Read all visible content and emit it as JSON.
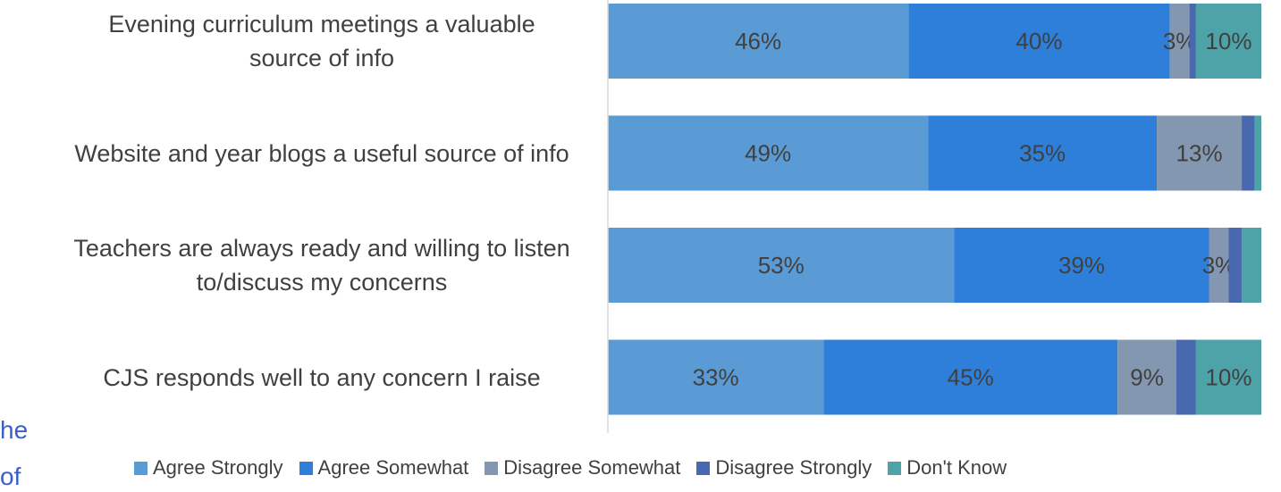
{
  "chart_data": {
    "type": "stacked-bar-horizontal",
    "categories": [
      "Evening curriculum meetings a valuable source of info",
      "Website and year blogs a useful source of info",
      "Teachers are always ready and willing to listen to/discuss my concerns",
      "CJS responds well to any concern I raise"
    ],
    "xlim": [
      0,
      100
    ],
    "series": [
      {
        "name": "Agree Strongly",
        "color": "#5b9bd5",
        "values": [
          46,
          49,
          53,
          33
        ],
        "value_labels": [
          "46%",
          "49%",
          "53%",
          "33%"
        ]
      },
      {
        "name": "Agree Somewhat",
        "color": "#2e7fd9",
        "values": [
          40,
          35,
          39,
          45
        ],
        "value_labels": [
          "40%",
          "35%",
          "39%",
          "45%"
        ]
      },
      {
        "name": "Disagree Somewhat",
        "color": "#8497b0",
        "values": [
          3,
          13,
          3,
          9
        ],
        "value_labels": [
          "3%",
          "13%",
          "3%",
          "9%"
        ]
      },
      {
        "name": "Disagree Strongly",
        "color": "#4868b0",
        "values": [
          1,
          2,
          2,
          3
        ],
        "value_labels": [
          null,
          null,
          null,
          null
        ]
      },
      {
        "name": "Don't Know",
        "color": "#4ea3a8",
        "values": [
          10,
          1,
          3,
          10
        ],
        "value_labels": [
          "10%",
          null,
          null,
          "10%"
        ]
      }
    ],
    "legend": "bottom",
    "side_text": [
      "he",
      "of"
    ]
  }
}
